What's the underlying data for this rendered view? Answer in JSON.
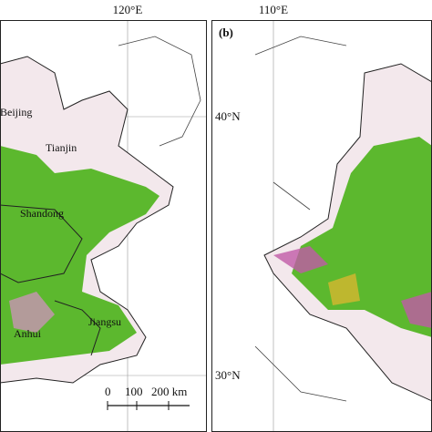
{
  "grid_labels": {
    "lon_left": "120°E",
    "lon_right": "110°E",
    "lat_top": "40°N",
    "lat_bottom": "30°N"
  },
  "panel_label": "(b)",
  "places": [
    "Beijing",
    "Tianjin",
    "Shandong",
    "Anhui",
    "Jiangsu"
  ],
  "scale_bar": {
    "ticks": [
      "0",
      "100",
      "200 km"
    ]
  }
}
